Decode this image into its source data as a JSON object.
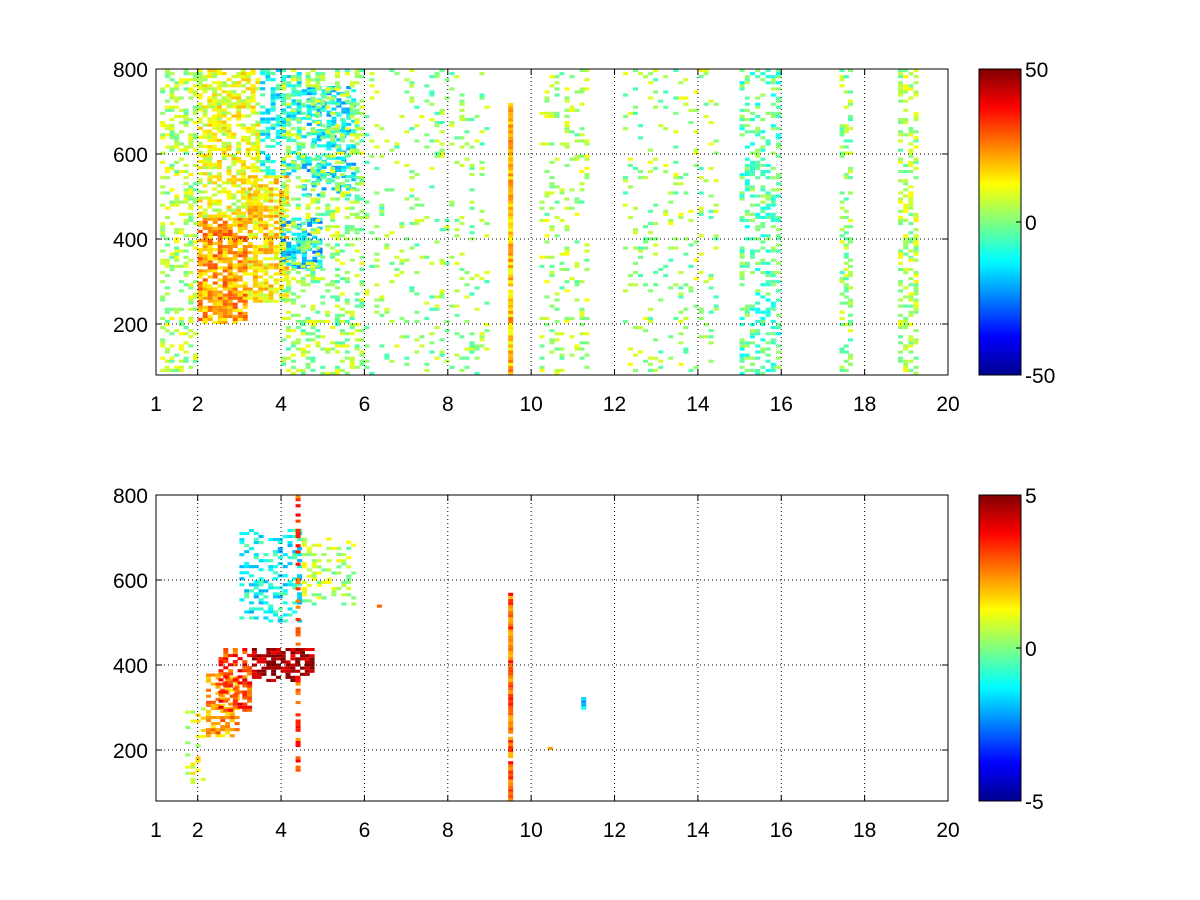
{
  "chart_data": [
    {
      "type": "heatmap",
      "title": "",
      "xlabel": "",
      "ylabel": "",
      "xlim": [
        1,
        20
      ],
      "ylim": [
        80,
        800
      ],
      "xticks": [
        1,
        2,
        4,
        6,
        8,
        10,
        12,
        14,
        16,
        18,
        20
      ],
      "yticks": [
        200,
        400,
        600,
        800
      ],
      "grid": true,
      "colormap": "jet",
      "clim": [
        -50,
        50
      ],
      "colorbar_ticks": [
        50,
        0,
        -50
      ],
      "description_of_content": "dense sparse speckle field of values, strongest and most positive (yellow-orange) around x 2-4, y 200-450; cyan/negative patches around x 3.5-6, y 350-750; vertical streaks of scattered small values at x approx 9.5, 10.5-11, 13, 15-16, 17.5, 19",
      "clusters": [
        {
          "x": [
            1.1,
            2.0
          ],
          "y": [
            80,
            800
          ],
          "value": 5,
          "density": 0.35
        },
        {
          "x": [
            2.0,
            3.2
          ],
          "y": [
            200,
            450
          ],
          "value": 22,
          "density": 0.8
        },
        {
          "x": [
            2.0,
            3.5
          ],
          "y": [
            450,
            800
          ],
          "value": 10,
          "density": 0.6
        },
        {
          "x": [
            3.2,
            4.2
          ],
          "y": [
            250,
            550
          ],
          "value": 15,
          "density": 0.7
        },
        {
          "x": [
            3.5,
            4.5
          ],
          "y": [
            550,
            800
          ],
          "value": -12,
          "density": 0.5
        },
        {
          "x": [
            4.0,
            5.0
          ],
          "y": [
            330,
            450
          ],
          "value": -18,
          "density": 0.55
        },
        {
          "x": [
            4.5,
            5.8
          ],
          "y": [
            500,
            760
          ],
          "value": -15,
          "density": 0.45
        },
        {
          "x": [
            4.0,
            6.0
          ],
          "y": [
            80,
            800
          ],
          "value": 3,
          "density": 0.3
        },
        {
          "x": [
            6.0,
            9.0
          ],
          "y": [
            80,
            800
          ],
          "value": 2,
          "density": 0.12
        },
        {
          "x": [
            9.45,
            9.6
          ],
          "y": [
            80,
            720
          ],
          "value": 18,
          "density": 0.95
        },
        {
          "x": [
            10.2,
            11.4
          ],
          "y": [
            80,
            800
          ],
          "value": 4,
          "density": 0.18
        },
        {
          "x": [
            12.2,
            14.5
          ],
          "y": [
            80,
            800
          ],
          "value": 3,
          "density": 0.12
        },
        {
          "x": [
            15.0,
            16.0
          ],
          "y": [
            80,
            800
          ],
          "value": -4,
          "density": 0.35
        },
        {
          "x": [
            17.4,
            17.7
          ],
          "y": [
            80,
            800
          ],
          "value": 2,
          "density": 0.3
        },
        {
          "x": [
            18.8,
            19.3
          ],
          "y": [
            80,
            800
          ],
          "value": 5,
          "density": 0.45
        }
      ]
    },
    {
      "type": "heatmap",
      "title": "",
      "xlabel": "",
      "ylabel": "",
      "xlim": [
        1,
        20
      ],
      "ylim": [
        80,
        800
      ],
      "xticks": [
        1,
        2,
        4,
        6,
        8,
        10,
        12,
        14,
        16,
        18,
        20
      ],
      "yticks": [
        200,
        400,
        600,
        800
      ],
      "grid": true,
      "colormap": "jet",
      "clim": [
        -5,
        5
      ],
      "colorbar_ticks": [
        5,
        0,
        -5
      ],
      "description_of_content": "sparse field; strong positive (red) cluster around x 3-4.8, y 360-440; yellow cluster x 2.2-3, y 230-380; scattered cyan/green x 3-6, y 500-700; vertical orange line at x approx 9.5 from y 80 to 570",
      "clusters": [
        {
          "x": [
            1.7,
            2.2
          ],
          "y": [
            120,
            300
          ],
          "value": 1,
          "density": 0.25
        },
        {
          "x": [
            2.2,
            3.0
          ],
          "y": [
            230,
            380
          ],
          "value": 2.2,
          "density": 0.6
        },
        {
          "x": [
            2.5,
            3.3
          ],
          "y": [
            290,
            440
          ],
          "value": 3.2,
          "density": 0.5
        },
        {
          "x": [
            3.3,
            4.8
          ],
          "y": [
            360,
            440
          ],
          "value": 4.6,
          "density": 0.6
        },
        {
          "x": [
            3.0,
            4.5
          ],
          "y": [
            500,
            720
          ],
          "value": -1.2,
          "density": 0.3
        },
        {
          "x": [
            4.5,
            5.8
          ],
          "y": [
            540,
            700
          ],
          "value": 0.5,
          "density": 0.3
        },
        {
          "x": [
            4.35,
            4.45
          ],
          "y": [
            120,
            800
          ],
          "value": 3,
          "density": 0.45
        },
        {
          "x": [
            9.45,
            9.6
          ],
          "y": [
            80,
            570
          ],
          "value": 2.8,
          "density": 0.95
        },
        {
          "x": [
            11.2,
            11.35
          ],
          "y": [
            295,
            325
          ],
          "value": -1.5,
          "density": 0.6
        },
        {
          "x": [
            10.4,
            10.55
          ],
          "y": [
            200,
            210
          ],
          "value": 2.5,
          "density": 0.8
        },
        {
          "x": [
            6.3,
            6.4
          ],
          "y": [
            535,
            555
          ],
          "value": 2.5,
          "density": 0.8
        }
      ]
    }
  ]
}
